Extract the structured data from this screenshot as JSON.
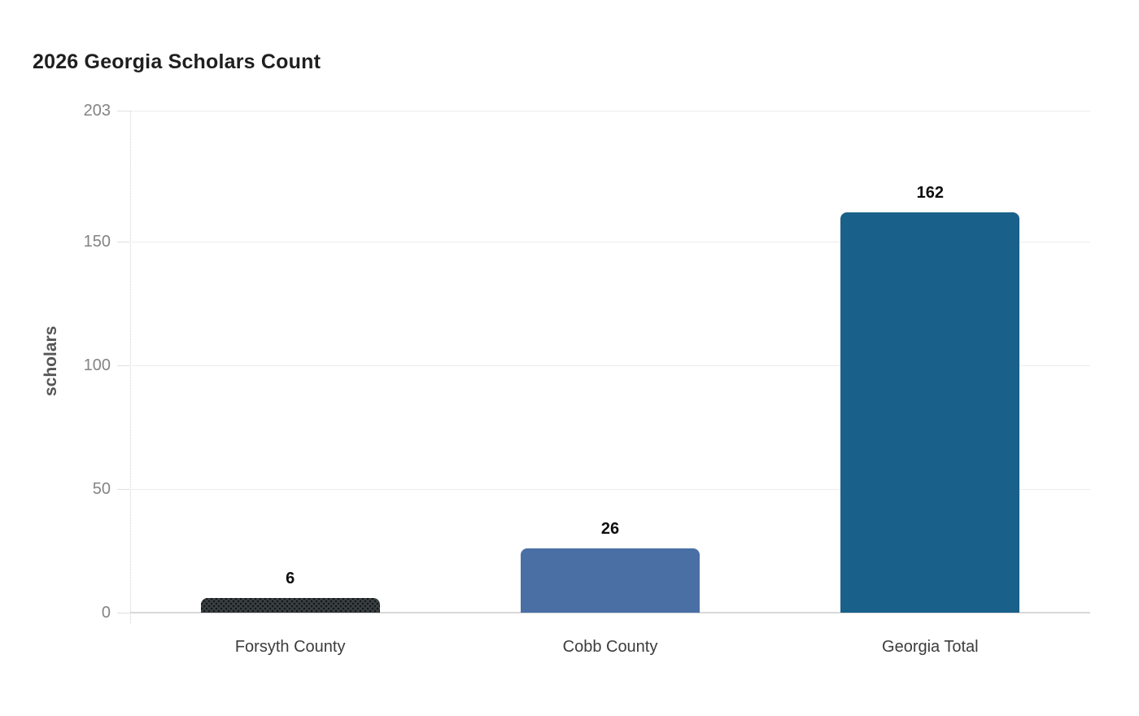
{
  "chart_data": {
    "type": "bar",
    "title": "2026 Georgia Scholars Count",
    "categories": [
      "Forsyth County",
      "Cobb County",
      "Georgia Total"
    ],
    "values": [
      6,
      26,
      162
    ],
    "value_labels": [
      "6",
      "26",
      "162"
    ],
    "xlabel": "",
    "ylabel": "scholars",
    "ylim": [
      0,
      203
    ],
    "yticks": [
      0,
      50,
      100,
      150,
      203
    ],
    "ytick_labels": [
      "0",
      "50",
      "100",
      "150",
      "203"
    ],
    "grid": "horizontal",
    "legend_position": "none",
    "bar_colors": [
      "#3b4143",
      "#4a6fa5",
      "#19618a"
    ],
    "bar_patterns": [
      "dots",
      "solid",
      "solid"
    ],
    "value_label_color": "#0e0e0e",
    "gridline_color": "#ececec",
    "baseline_color": "#d8d8d8",
    "tick_label_color": "#848484",
    "category_label_color": "#3c3c3c",
    "background_color": "#ffffff"
  }
}
